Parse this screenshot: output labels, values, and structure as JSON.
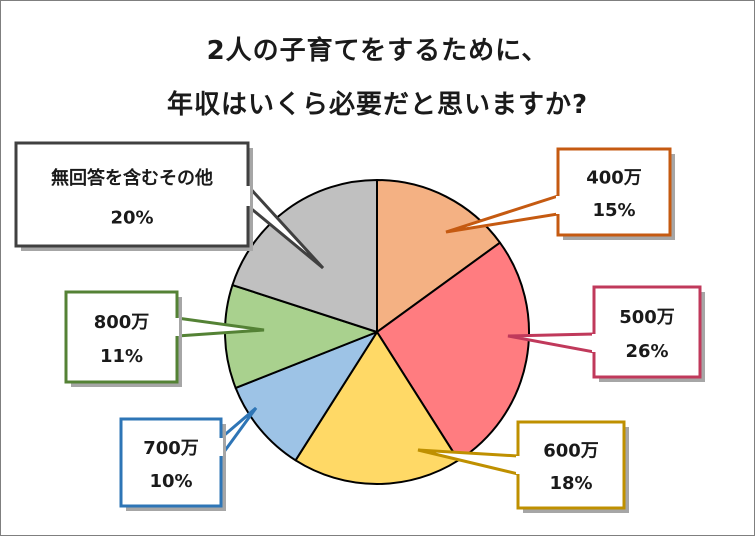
{
  "chart_data": {
    "type": "pie",
    "title_lines": [
      "2人の子育てをするために、",
      "年収はいくら必要だと思いますか?"
    ],
    "start_angle_deg": 0,
    "direction": "clockwise",
    "slices": [
      {
        "label": "400万",
        "value": 15,
        "value_label": "15%",
        "color": "#f4b183",
        "border": "#c55a11"
      },
      {
        "label": "500万",
        "value": 26,
        "value_label": "26%",
        "color": "#ff7c80",
        "border": "#c0395b"
      },
      {
        "label": "600万",
        "value": 18,
        "value_label": "18%",
        "color": "#ffd966",
        "border": "#bf9000"
      },
      {
        "label": "700万",
        "value": 10,
        "value_label": "10%",
        "color": "#9dc3e6",
        "border": "#2e75b6"
      },
      {
        "label": "800万",
        "value": 11,
        "value_label": "11%",
        "color": "#a9d18e",
        "border": "#548235"
      },
      {
        "label": "無回答を含むその他",
        "value": 20,
        "value_label": "20%",
        "color": "#c0c0c0",
        "border": "#404040"
      }
    ]
  }
}
